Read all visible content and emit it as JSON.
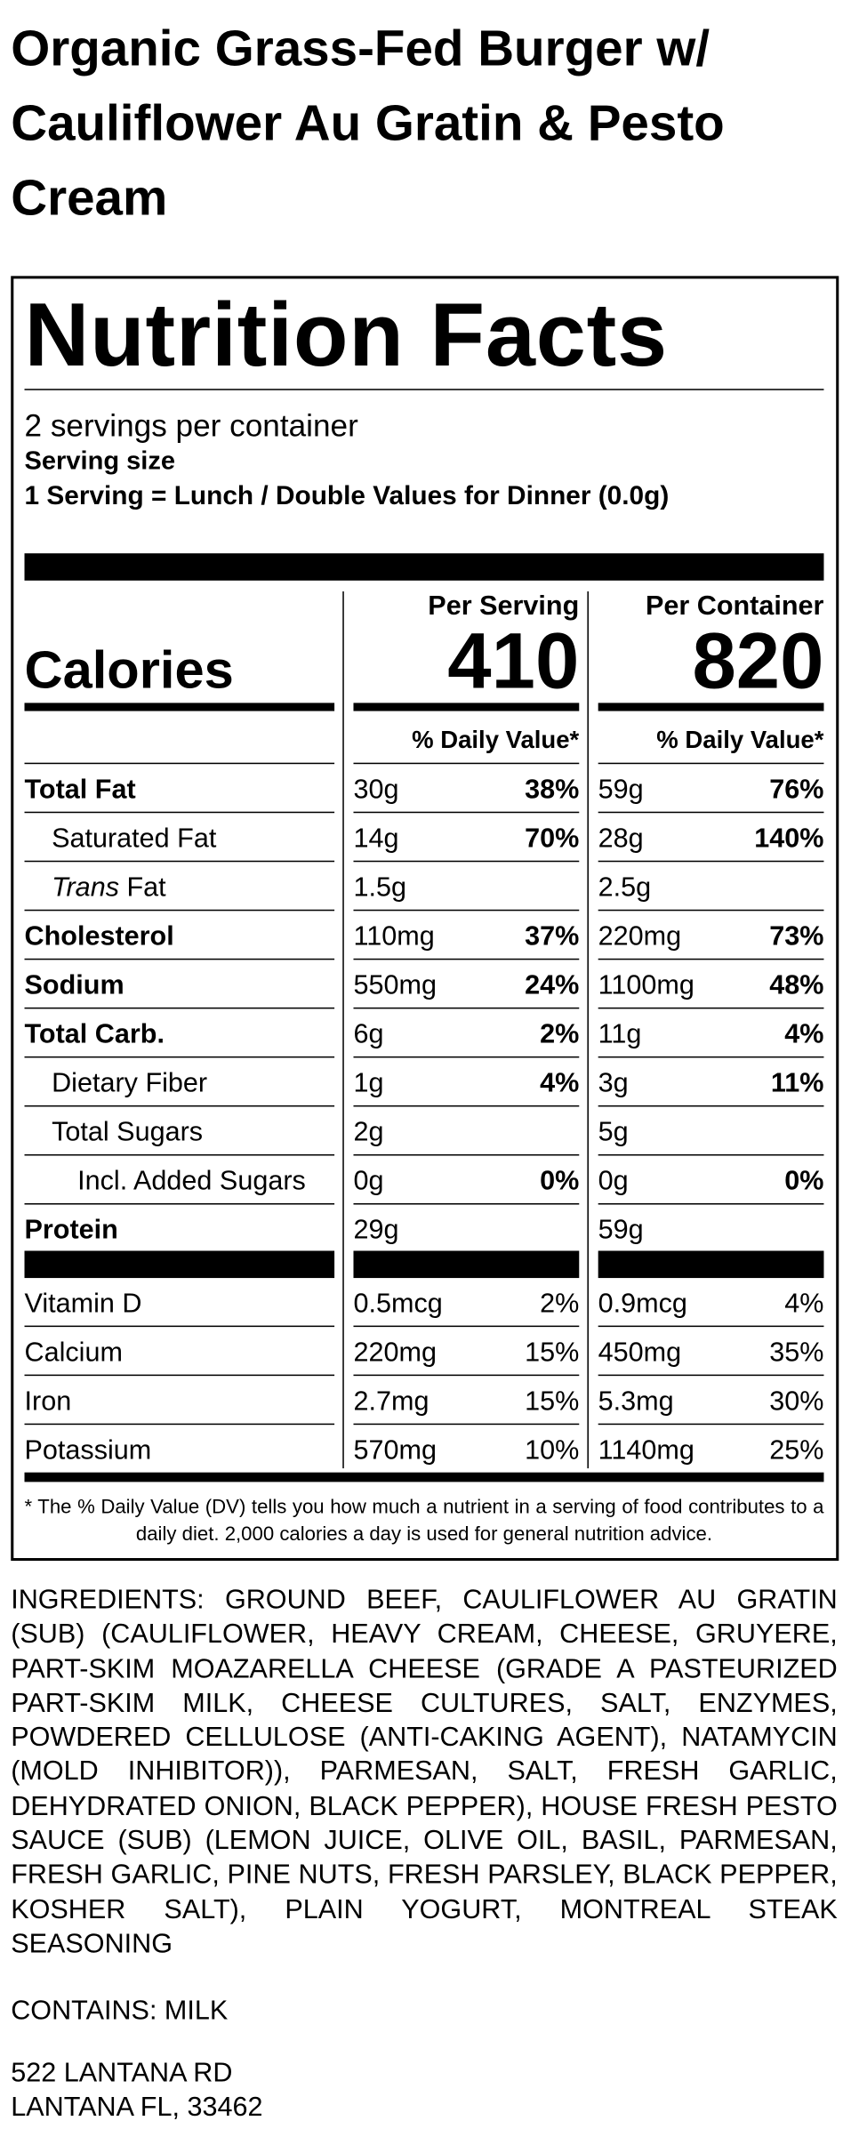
{
  "title": "Organic Grass-Fed Burger w/ Cauliflower Au Gratin & Pesto Cream",
  "nutrition": {
    "heading": "Nutrition Facts",
    "servings_per_container": "2 servings per container",
    "serving_size_label": "Serving size",
    "serving_size": "1 Serving = Lunch / Double Values for Dinner (0.0g)",
    "col_headers": [
      "Per Serving",
      "Per Container"
    ],
    "calories_label": "Calories",
    "calories": [
      410,
      820
    ],
    "dv_header": "% Daily Value*",
    "rows": [
      {
        "label": "Total Fat",
        "bold": true,
        "indent": 0,
        "serving": [
          "30g",
          "38%"
        ],
        "container": [
          "59g",
          "76%"
        ]
      },
      {
        "label": "Saturated Fat",
        "bold": false,
        "indent": 1,
        "serving": [
          "14g",
          "70%"
        ],
        "container": [
          "28g",
          "140%"
        ]
      },
      {
        "label_italic": "Trans",
        "label": "Fat",
        "bold": false,
        "indent": 1,
        "serving": [
          "1.5g"
        ],
        "container": [
          "2.5g"
        ]
      },
      {
        "label": "Cholesterol",
        "bold": true,
        "indent": 0,
        "serving": [
          "110mg",
          "37%"
        ],
        "container": [
          "220mg",
          "73%"
        ]
      },
      {
        "label": "Sodium",
        "bold": true,
        "indent": 0,
        "serving": [
          "550mg",
          "24%"
        ],
        "container": [
          "1100mg",
          "48%"
        ]
      },
      {
        "label": "Total Carb.",
        "bold": true,
        "indent": 0,
        "serving": [
          "6g",
          "2%"
        ],
        "container": [
          "11g",
          "4%"
        ]
      },
      {
        "label": "Dietary Fiber",
        "bold": false,
        "indent": 1,
        "serving": [
          "1g",
          "4%"
        ],
        "container": [
          "3g",
          "11%"
        ]
      },
      {
        "label": "Total Sugars",
        "bold": false,
        "indent": 1,
        "serving": [
          "2g"
        ],
        "container": [
          "5g"
        ]
      },
      {
        "label": "Incl. Added Sugars",
        "bold": false,
        "indent": 2,
        "serving": [
          "0g",
          "0%"
        ],
        "container": [
          "0g",
          "0%"
        ]
      },
      {
        "label": "Protein",
        "bold": true,
        "indent": 0,
        "serving": [
          "29g"
        ],
        "container": [
          "59g"
        ]
      }
    ],
    "vitamins": [
      {
        "label": "Vitamin D",
        "serving": [
          "0.5mcg",
          "2%"
        ],
        "container": [
          "0.9mcg",
          "4%"
        ]
      },
      {
        "label": "Calcium",
        "serving": [
          "220mg",
          "15%"
        ],
        "container": [
          "450mg",
          "35%"
        ]
      },
      {
        "label": "Iron",
        "serving": [
          "2.7mg",
          "15%"
        ],
        "container": [
          "5.3mg",
          "30%"
        ]
      },
      {
        "label": "Potassium",
        "serving": [
          "570mg",
          "10%"
        ],
        "container": [
          "1140mg",
          "25%"
        ]
      }
    ],
    "footnote": "* The % Daily Value (DV) tells you how much a nutrient in a serving of food contributes to a daily diet. 2,000 calories a day is used for general nutrition advice."
  },
  "ingredients": "INGREDIENTS: GROUND BEEF, CAULIFLOWER AU GRATIN (SUB) (CAULIFLOWER, HEAVY CREAM, CHEESE, GRUYERE, PART-SKIM MOAZARELLA CHEESE (GRADE A PASTEURIZED PART-SKIM MILK, CHEESE CULTURES, SALT, ENZYMES, POWDERED CELLULOSE (ANTI-CAKING AGENT), NATAMYCIN (MOLD INHIBITOR)), PARMESAN, SALT, FRESH GARLIC, DEHYDRATED ONION, BLACK PEPPER), HOUSE FRESH PESTO SAUCE (SUB) (LEMON JUICE, OLIVE OIL, BASIL, PARMESAN, FRESH GARLIC, PINE NUTS, FRESH PARSLEY, BLACK PEPPER, KOSHER SALT), PLAIN YOGURT, MONTREAL STEAK SEASONING",
  "contains": "CONTAINS: MILK",
  "address": [
    "522 LANTANA RD",
    "LANTANA FL, 33462"
  ]
}
